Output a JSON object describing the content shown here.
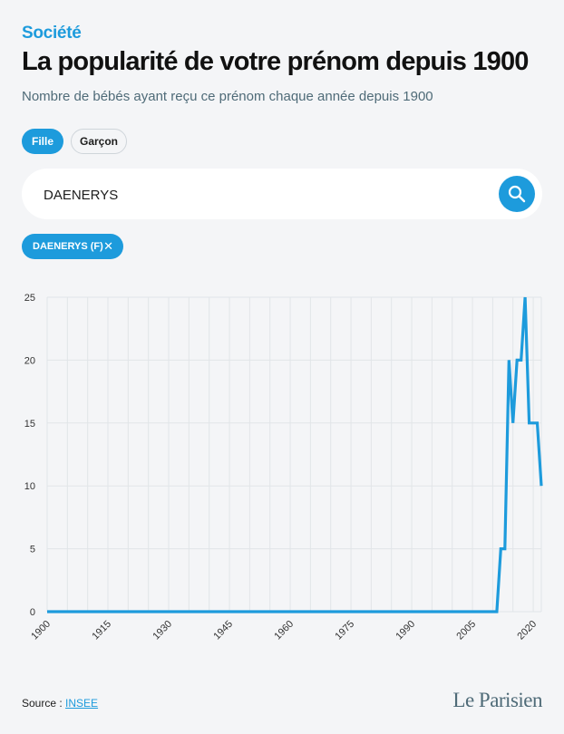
{
  "header": {
    "category": "Société",
    "title": "La popularité de votre prénom depuis 1900",
    "subtitle": "Nombre de bébés ayant reçu ce prénom chaque année depuis 1900"
  },
  "gender_toggle": {
    "selected": "Fille",
    "options": [
      "Fille",
      "Garçon"
    ]
  },
  "search": {
    "value": "DAENERYS"
  },
  "selected_chip": {
    "label": "DAENERYS (F)",
    "close_glyph": "✕"
  },
  "colors": {
    "accent": "#1d9bdc",
    "grid": "#e1e5e8",
    "axis_text": "#333333",
    "background": "#f4f5f7"
  },
  "chart_data": {
    "type": "line",
    "title": "",
    "xlabel": "",
    "ylabel": "",
    "xlim": [
      1900,
      2022
    ],
    "ylim": [
      0,
      25
    ],
    "x_ticks": [
      "1900",
      "1915",
      "1930",
      "1945",
      "1960",
      "1975",
      "1990",
      "2005",
      "2020"
    ],
    "y_ticks": [
      "0",
      "5",
      "10",
      "15",
      "20",
      "25"
    ],
    "grid": true,
    "series": [
      {
        "color": "#1d9bdc",
        "x": [
          1900,
          2011,
          2012,
          2013,
          2014,
          2015,
          2016,
          2017,
          2018,
          2019,
          2020,
          2021,
          2022
        ],
        "y": [
          0,
          0,
          5,
          5,
          20,
          15,
          20,
          20,
          25,
          15,
          15,
          15,
          10
        ]
      }
    ]
  },
  "footer": {
    "source_label": "Source :",
    "source_link": "INSEE",
    "logo": "Le Parisien"
  }
}
